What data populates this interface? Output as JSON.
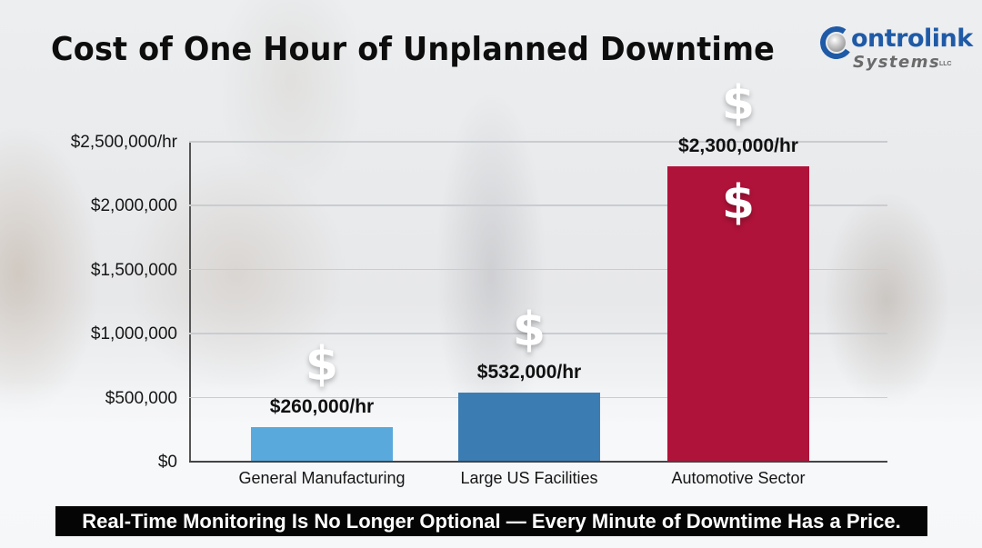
{
  "title": "Cost of One Hour of Unplanned Downtime",
  "logo": {
    "top_text": "ontrolink",
    "bottom_text": "Systems",
    "suffix": "LLC",
    "colors": {
      "primary": "#1f5aa6",
      "secondary": "#6b6b6b"
    }
  },
  "banner": {
    "text": "Real-Time Monitoring Is No Longer Optional — Every Minute of Downtime Has a Price."
  },
  "axis": {
    "y_ticks": [
      {
        "label": "$2,500,000/hr",
        "value": 2500000
      },
      {
        "label": "$2,000,000",
        "value": 2000000
      },
      {
        "label": "$1,500,000",
        "value": 1500000
      },
      {
        "label": "$1,000,000",
        "value": 1000000
      },
      {
        "label": "$500,000",
        "value": 500000
      },
      {
        "label": "$0",
        "value": 0
      }
    ]
  },
  "bars": [
    {
      "category": "General Manufacturing",
      "value": 260000,
      "label": "$260,000/hr",
      "color": "#5aa9dc",
      "icon": "$"
    },
    {
      "category": "Large US Facilities",
      "value": 532000,
      "label": "$532,000/hr",
      "color": "#3b7db3",
      "icon": "$"
    },
    {
      "category": "Automotive Sector",
      "value": 2300000,
      "label": "$2,300,000/hr",
      "color": "#b0133a",
      "icon": "$"
    }
  ],
  "chart_data": {
    "type": "bar",
    "title": "Cost of One Hour of Unplanned Downtime",
    "categories": [
      "General Manufacturing",
      "Large US Facilities",
      "Automotive Sector"
    ],
    "values": [
      260000,
      532000,
      2300000
    ],
    "data_labels": [
      "$260,000/hr",
      "$532,000/hr",
      "$2,300,000/hr"
    ],
    "colors": [
      "#5aa9dc",
      "#3b7db3",
      "#b0133a"
    ],
    "xlabel": "",
    "ylabel": "",
    "ylim": [
      0,
      2500000
    ],
    "y_tick_labels": [
      "$0",
      "$500,000",
      "$1,000,000",
      "$1,500,000",
      "$2,000,000",
      "$2,500,000/hr"
    ],
    "grid": true,
    "legend": null,
    "annotations": [
      "dollar-sign icons above each bar and inside the Automotive Sector bar"
    ],
    "footer": "Real-Time Monitoring Is No Longer Optional — Every Minute of Downtime Has a Price."
  }
}
